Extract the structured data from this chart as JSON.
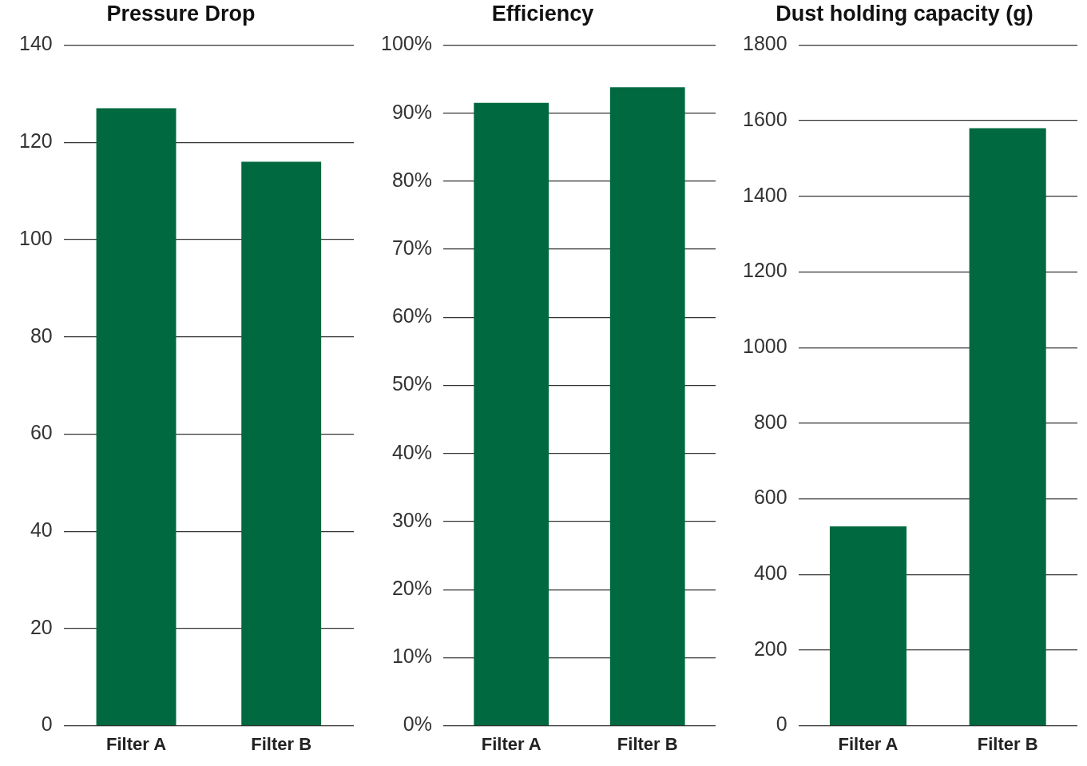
{
  "chart_data": [
    {
      "type": "bar",
      "title": "Pressure Drop",
      "categories": [
        "Filter A",
        "Filter B"
      ],
      "values": [
        127,
        116
      ],
      "color": "#006940",
      "ylim": [
        0,
        140
      ],
      "yticks": [
        0,
        20,
        40,
        60,
        80,
        100,
        120,
        140
      ],
      "grid": "y",
      "legend": false
    },
    {
      "type": "bar",
      "title": "Efficiency",
      "categories": [
        "Filter A",
        "Filter B"
      ],
      "values": [
        91.5,
        93.8
      ],
      "color": "#006940",
      "ylim": [
        0,
        100
      ],
      "yticks": [
        {
          "value": 0,
          "label": "0%"
        },
        {
          "value": 10,
          "label": "10%"
        },
        {
          "value": 20,
          "label": "20%"
        },
        {
          "value": 30,
          "label": "30%"
        },
        {
          "value": 40,
          "label": "40%"
        },
        {
          "value": 50,
          "label": "50%"
        },
        {
          "value": 60,
          "label": "60%"
        },
        {
          "value": 70,
          "label": "70%"
        },
        {
          "value": 80,
          "label": "80%"
        },
        {
          "value": 90,
          "label": "90%"
        },
        {
          "value": 100,
          "label": "100%"
        }
      ],
      "grid": "y",
      "legend": false
    },
    {
      "type": "bar",
      "title": "Dust holding capacity (g)",
      "categories": [
        "Filter A",
        "Filter B"
      ],
      "values": [
        527,
        1580
      ],
      "color": "#006940",
      "ylim": [
        0,
        1800
      ],
      "yticks": [
        0,
        200,
        400,
        600,
        800,
        1000,
        1200,
        1400,
        1600,
        1800
      ],
      "grid": "y",
      "legend": false
    }
  ]
}
